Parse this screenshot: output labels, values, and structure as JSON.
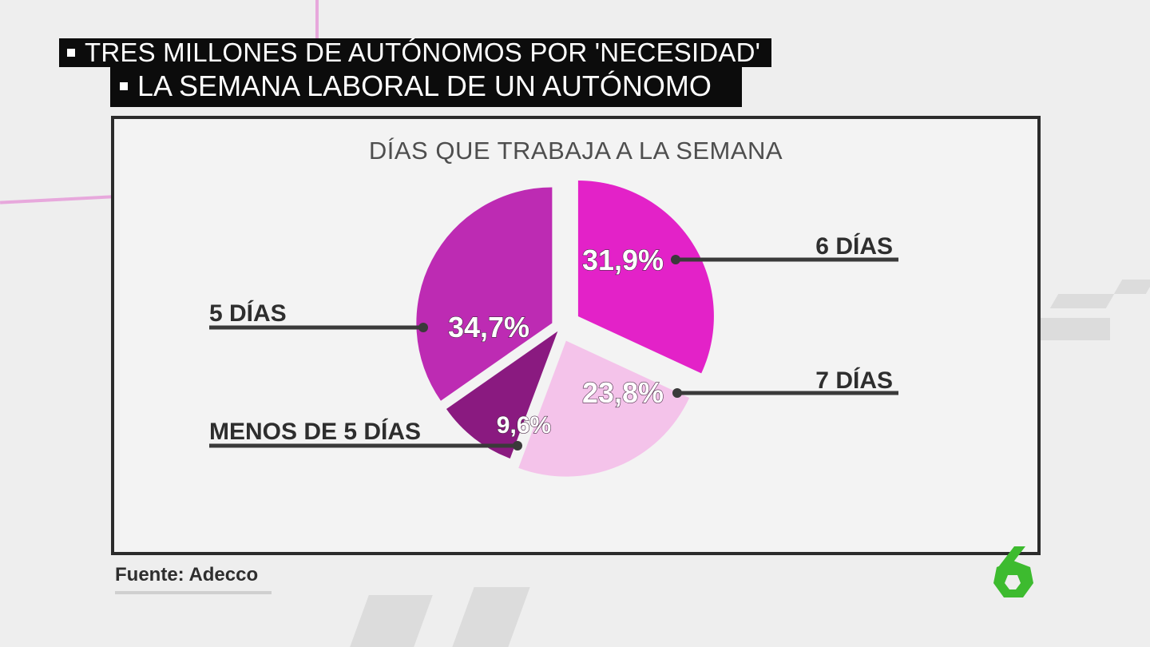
{
  "header": {
    "kicker": "TRES MILLONES DE AUTÓNOMOS POR 'NECESIDAD'",
    "headline": "LA SEMANA LABORAL DE UN AUTÓNOMO"
  },
  "chart_data": {
    "type": "pie",
    "title": "DÍAS QUE TRABAJA A LA SEMANA",
    "slices": [
      {
        "label": "6 DÍAS",
        "value": 31.9,
        "value_label": "31,9%",
        "color": "#e322c8"
      },
      {
        "label": "7 DÍAS",
        "value": 23.8,
        "value_label": "23,8%",
        "color": "#f4c3ea"
      },
      {
        "label": "MENOS DE 5 DÍAS",
        "value": 9.6,
        "value_label": "9,6%",
        "color": "#8a1a80"
      },
      {
        "label": "5 DÍAS",
        "value": 34.7,
        "value_label": "34,7%",
        "color": "#bd2bb3"
      }
    ]
  },
  "footer": {
    "source": "Fuente: Adecco",
    "channel_logo": "6",
    "logo_color": "#3dbb2f"
  }
}
